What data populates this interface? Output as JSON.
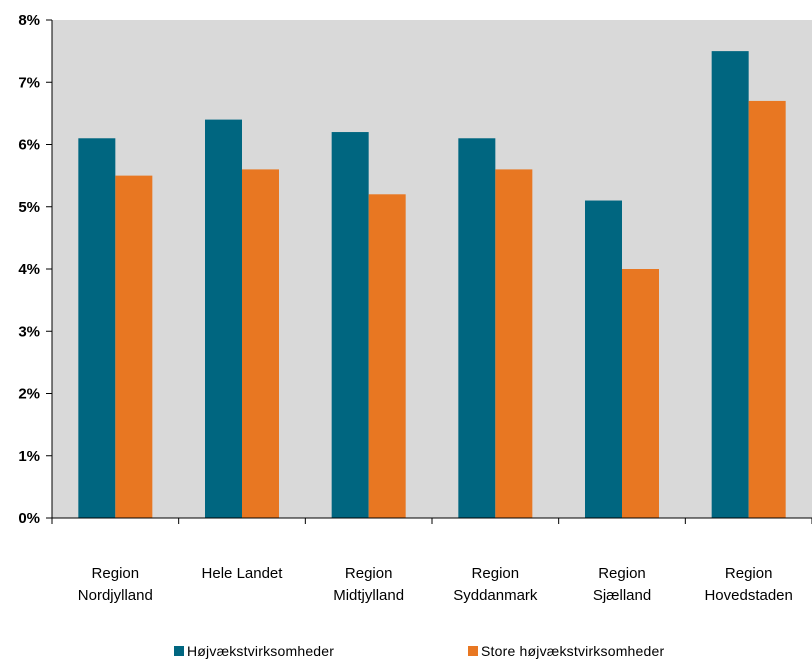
{
  "chart_data": {
    "type": "bar",
    "title": "",
    "xlabel": "",
    "ylabel": "",
    "ylim": [
      0,
      8
    ],
    "y_ticks": [
      "0%",
      "1%",
      "2%",
      "3%",
      "4%",
      "5%",
      "6%",
      "7%",
      "8%"
    ],
    "categories": [
      [
        "Region",
        "Nordjylland"
      ],
      [
        "Hele Landet"
      ],
      [
        "Region",
        "Midtjylland"
      ],
      [
        "Region",
        "Syddanmark"
      ],
      [
        "Region",
        "Sjælland"
      ],
      [
        "Region",
        "Hovedstaden"
      ]
    ],
    "series": [
      {
        "name": "Højvækstvirksomheder",
        "color": "#006680",
        "values": [
          6.1,
          6.4,
          6.2,
          6.1,
          5.1,
          7.5
        ]
      },
      {
        "name": "Store højvækstvirksomheder",
        "color": "#E87722",
        "values": [
          5.5,
          5.6,
          5.2,
          5.6,
          4.0,
          6.7
        ]
      }
    ],
    "grid": false,
    "plot_background": "#D9D9D9",
    "legend_position": "bottom"
  }
}
